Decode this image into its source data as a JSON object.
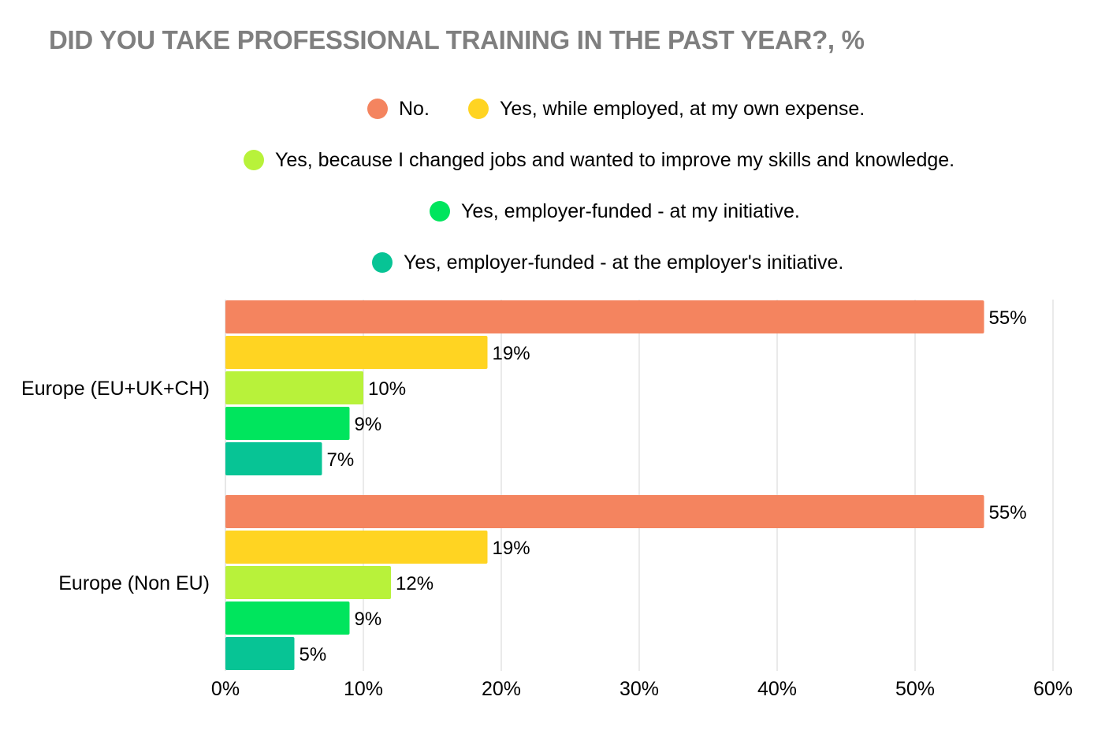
{
  "chart_data": {
    "type": "bar",
    "orientation": "horizontal",
    "title": "DID YOU TAKE PROFESSIONAL TRAINING IN THE PAST YEAR?, %",
    "categories": [
      "Europe (EU+UK+CH)",
      "Europe (Non EU)"
    ],
    "series": [
      {
        "name": "No.",
        "color": "#f4845f",
        "values": [
          55,
          55
        ]
      },
      {
        "name": "Yes, while employed, at my own expense.",
        "color": "#ffd422",
        "values": [
          19,
          19
        ]
      },
      {
        "name": "Yes, because I changed jobs and wanted to improve my skills and knowledge.",
        "color": "#b8f23a",
        "values": [
          10,
          12
        ]
      },
      {
        "name": "Yes, employer-funded - at my initiative.",
        "color": "#00e55d",
        "values": [
          9,
          9
        ]
      },
      {
        "name": "Yes, employer-funded - at the employer's initiative.",
        "color": "#07c495",
        "values": [
          7,
          5
        ]
      }
    ],
    "data_labels": [
      [
        "55%",
        "19%",
        "10%",
        "9%",
        "7%"
      ],
      [
        "55%",
        "19%",
        "12%",
        "9%",
        "5%"
      ]
    ],
    "xlim": [
      0,
      60
    ],
    "xticks": [
      0,
      10,
      20,
      30,
      40,
      50,
      60
    ],
    "xtick_labels": [
      "0%",
      "10%",
      "20%",
      "30%",
      "40%",
      "50%",
      "60%"
    ],
    "xlabel": "",
    "ylabel": "",
    "grid": true,
    "legend": "top"
  }
}
